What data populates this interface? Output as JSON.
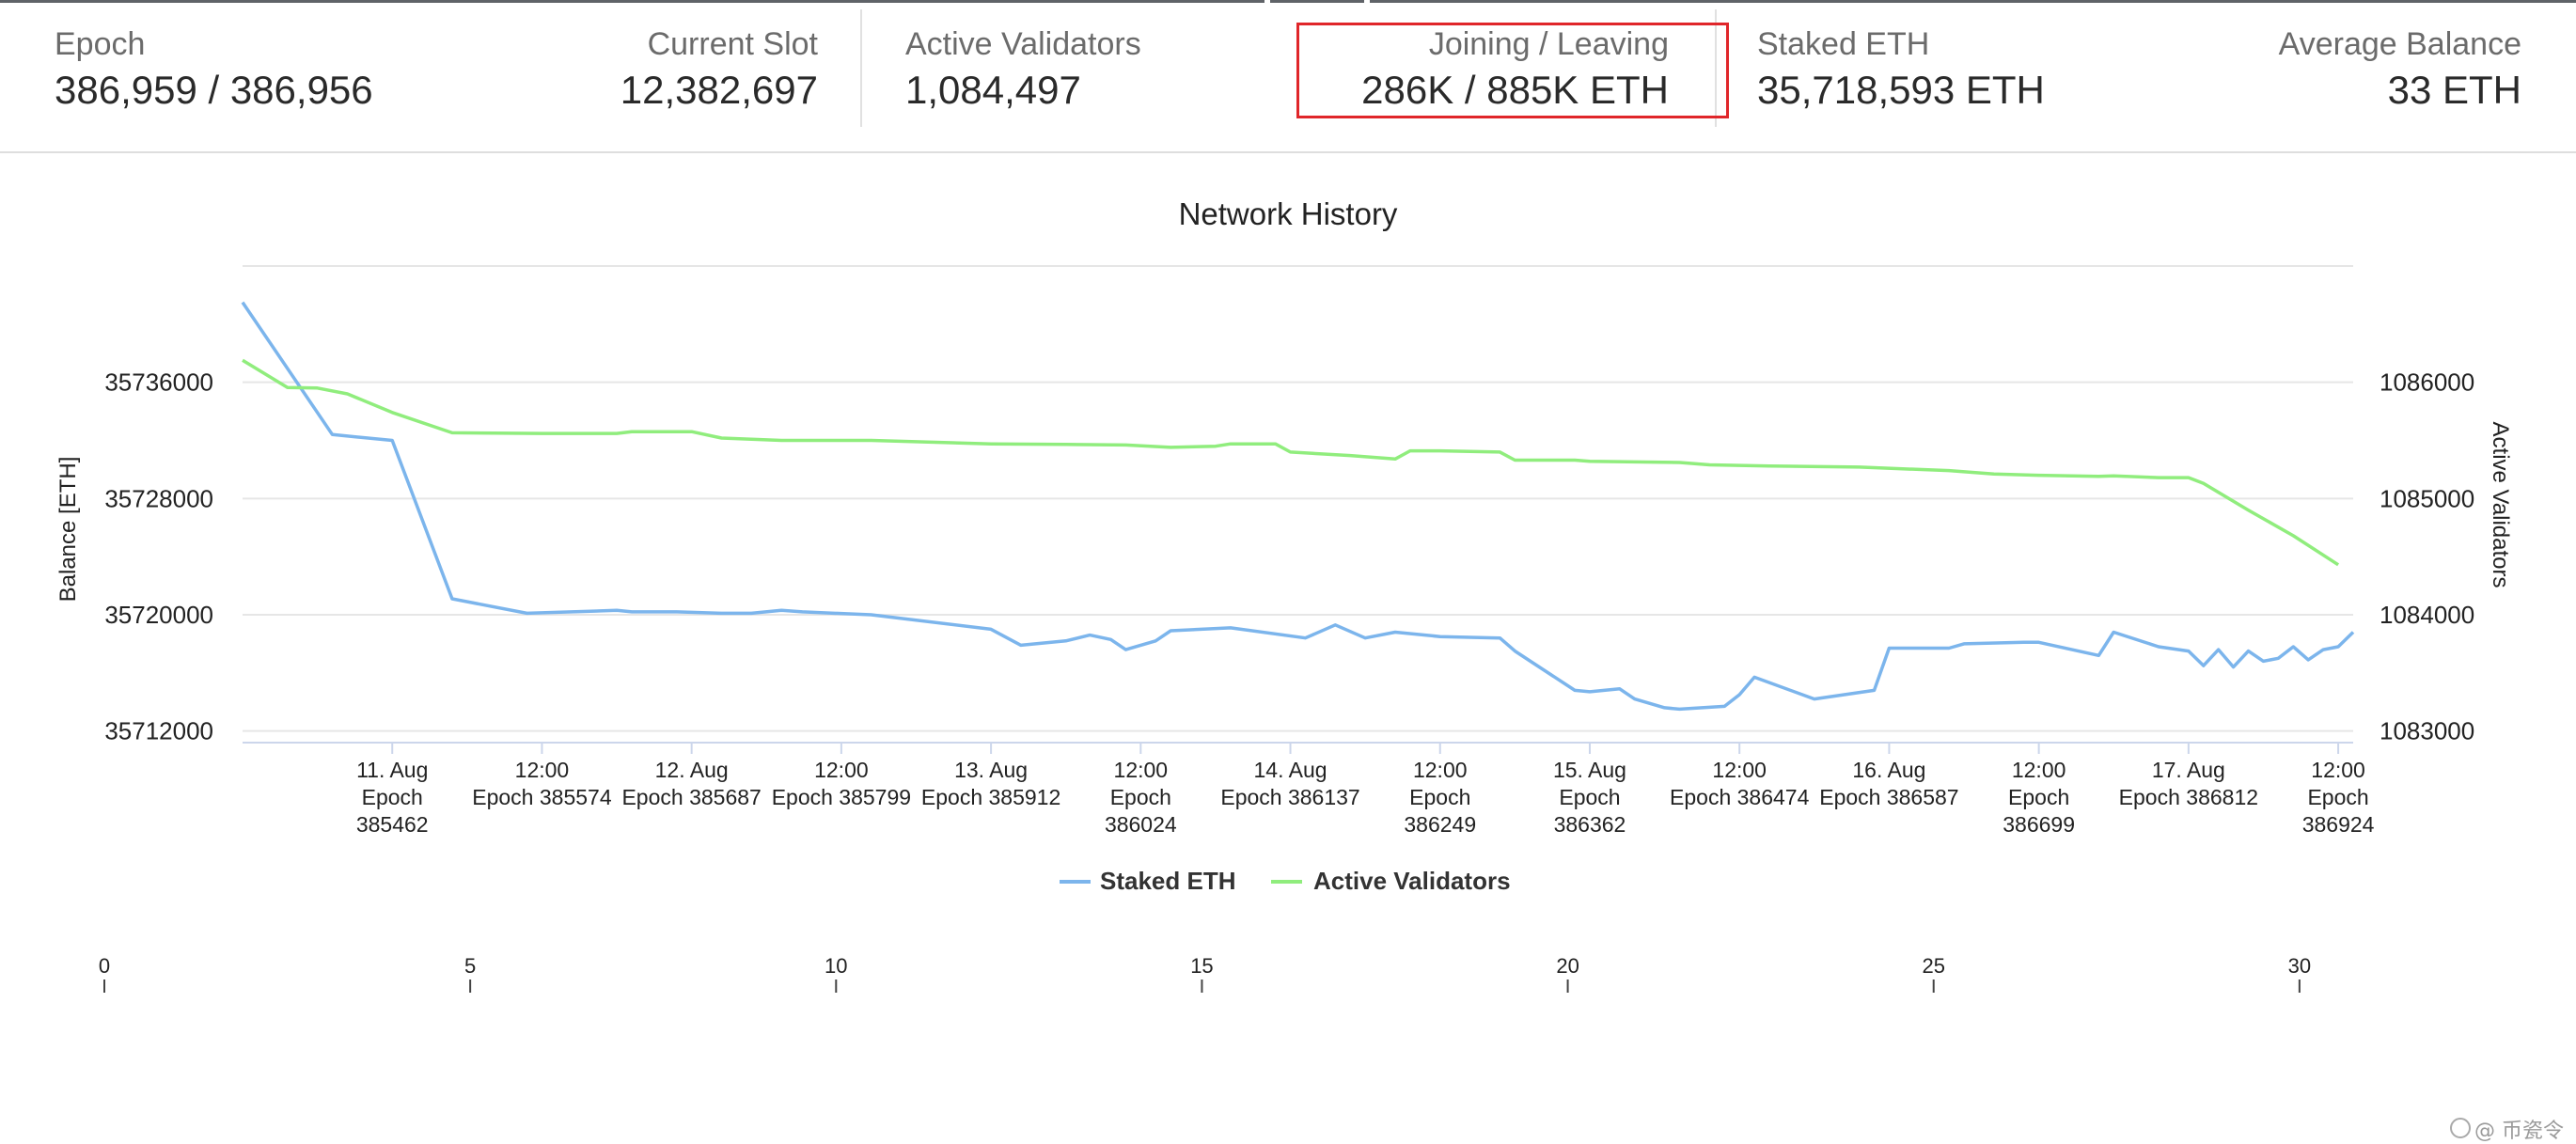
{
  "stats": [
    {
      "label": "Epoch",
      "value": "386,959 / 386,956"
    },
    {
      "label": "Current Slot",
      "value": "12,382,697"
    },
    {
      "label": "Active Validators",
      "value": "1,084,497"
    },
    {
      "label": "Joining / Leaving",
      "value": "286K / 885K ETH"
    },
    {
      "label": "Staked ETH",
      "value": "35,718,593 ETH"
    },
    {
      "label": "Average Balance",
      "value": "33 ETH"
    }
  ],
  "colors": {
    "highlight": "#e0262a",
    "staked": "#7cb5ec",
    "validators": "#90ed7d"
  },
  "watermark": "@ 币瓷令",
  "chart_data": {
    "type": "line",
    "title": "Network History",
    "xlabel": "",
    "x_tick_labels": [
      [
        "11. Aug",
        "Epoch",
        "385462"
      ],
      [
        "12:00",
        "Epoch 385574"
      ],
      [
        "12. Aug",
        "Epoch 385687"
      ],
      [
        "12:00",
        "Epoch 385799"
      ],
      [
        "13. Aug",
        "Epoch 385912"
      ],
      [
        "12:00",
        "Epoch",
        "386024"
      ],
      [
        "14. Aug",
        "Epoch 386137"
      ],
      [
        "12:00",
        "Epoch",
        "386249"
      ],
      [
        "15. Aug",
        "Epoch",
        "386362"
      ],
      [
        "12:00",
        "Epoch 386474"
      ],
      [
        "16. Aug",
        "Epoch 386587"
      ],
      [
        "12:00",
        "Epoch",
        "386699"
      ],
      [
        "17. Aug",
        "Epoch 386812"
      ],
      [
        "12:00",
        "Epoch",
        "386924"
      ]
    ],
    "y_left": {
      "label": "Balance [ETH]",
      "ticks": [
        35712000,
        35720000,
        35728000,
        35736000
      ],
      "range": [
        35711200,
        35744000
      ]
    },
    "y_right": {
      "label": "Active Validators",
      "ticks": [
        1083000,
        1084000,
        1085000,
        1086000
      ],
      "range": [
        1082900,
        1087000
      ]
    },
    "x_range_days": [
      0,
      7.05
    ],
    "legend": {
      "position": "bottom-center"
    },
    "grid": true,
    "series": [
      {
        "name": "Staked ETH",
        "axis": "left",
        "x": [
          0,
          0.3,
          0.5,
          0.7,
          0.95,
          1.25,
          1.3,
          1.45,
          1.6,
          1.7,
          1.8,
          1.87,
          2.1,
          2.5,
          2.6,
          2.75,
          2.83,
          2.9,
          2.95,
          3.05,
          3.1,
          3.3,
          3.55,
          3.65,
          3.75,
          3.85,
          4.0,
          4.2,
          4.25,
          4.45,
          4.5,
          4.6,
          4.65,
          4.75,
          4.8,
          4.95,
          5.0,
          5.05,
          5.25,
          5.45,
          5.5,
          5.7,
          5.75,
          5.95,
          6.0,
          6.2,
          6.25,
          6.4,
          6.5,
          6.55,
          6.6,
          6.65,
          6.7,
          6.75,
          6.8,
          6.85,
          6.9,
          6.95,
          7.0,
          7.05
        ],
        "y": [
          35741500,
          35732400,
          35732000,
          35721100,
          35720100,
          35720300,
          35720200,
          35720200,
          35720100,
          35720100,
          35720300,
          35720200,
          35720000,
          35719000,
          35717900,
          35718200,
          35718600,
          35718300,
          35717600,
          35718200,
          35718900,
          35719100,
          35718400,
          35719300,
          35718400,
          35718800,
          35718500,
          35718400,
          35717500,
          35714800,
          35714700,
          35714900,
          35714200,
          35713600,
          35713500,
          35713700,
          35714500,
          35715700,
          35714200,
          35714800,
          35717700,
          35717700,
          35718000,
          35718100,
          35718100,
          35717200,
          35718800,
          35717800,
          35717500,
          35716500,
          35717600,
          35716400,
          35717500,
          35716800,
          35717000,
          35717800,
          35716900,
          35717600,
          35717800,
          35718800
        ]
      },
      {
        "name": "Active Validators",
        "axis": "right",
        "x": [
          0,
          0.15,
          0.25,
          0.35,
          0.5,
          0.7,
          1.0,
          1.25,
          1.3,
          1.5,
          1.6,
          1.8,
          2.1,
          2.5,
          2.75,
          2.95,
          3.1,
          3.25,
          3.3,
          3.45,
          3.5,
          3.7,
          3.85,
          3.9,
          4.0,
          4.2,
          4.25,
          4.45,
          4.5,
          4.8,
          4.9,
          5.1,
          5.4,
          5.6,
          5.7,
          5.85,
          6.0,
          6.2,
          6.25,
          6.4,
          6.5,
          6.55,
          6.7,
          6.85,
          7.0
        ],
        "y": [
          1086190,
          1085955,
          1085950,
          1085900,
          1085740,
          1085565,
          1085560,
          1085560,
          1085575,
          1085575,
          1085520,
          1085500,
          1085500,
          1085470,
          1085465,
          1085460,
          1085440,
          1085450,
          1085470,
          1085470,
          1085400,
          1085370,
          1085340,
          1085410,
          1085410,
          1085400,
          1085330,
          1085330,
          1085320,
          1085310,
          1085290,
          1085280,
          1085270,
          1085250,
          1085240,
          1085210,
          1085200,
          1085190,
          1085195,
          1085180,
          1085180,
          1085130,
          1084900,
          1084680,
          1084430
        ]
      }
    ],
    "secondary_axis": {
      "ticks": [
        0,
        5,
        10,
        15,
        20,
        25,
        30
      ],
      "range": [
        0,
        30.4
      ]
    }
  }
}
